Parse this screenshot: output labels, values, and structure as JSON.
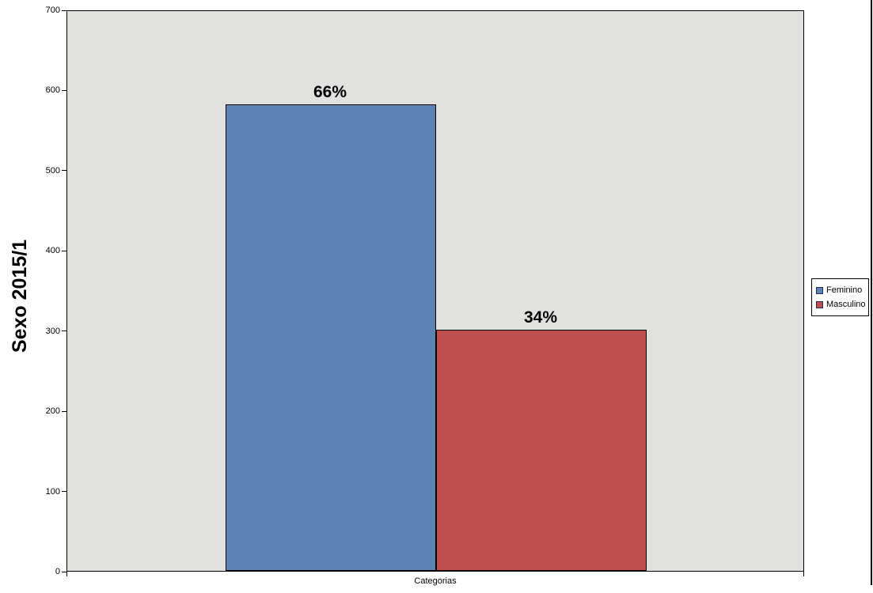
{
  "chart_data": {
    "type": "bar",
    "title": "",
    "ylabel": "Sexo 2015/1",
    "xlabel": "Categorias",
    "categories": [
      "Categorias"
    ],
    "series": [
      {
        "name": "Feminino",
        "value": 582,
        "data_label": "66%",
        "color": "#5D82B4"
      },
      {
        "name": "Masculino",
        "value": 301,
        "data_label": "34%",
        "color": "#BE4F4E"
      }
    ],
    "ylim": [
      0,
      700
    ],
    "yticks": [
      0,
      100,
      200,
      300,
      400,
      500,
      600,
      700
    ],
    "grid": false,
    "legend_position": "right",
    "plot_background": "#E1E1E0",
    "axis_color": "#000000"
  }
}
